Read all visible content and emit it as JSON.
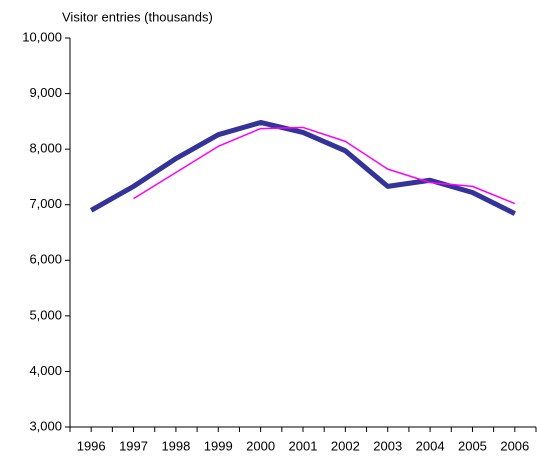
{
  "chart_data": {
    "type": "line",
    "y_axis_label": "Visitor entries (thousands)",
    "categories": [
      "1996",
      "1997",
      "1998",
      "1999",
      "2000",
      "2001",
      "2002",
      "2003",
      "2004",
      "2005",
      "2006"
    ],
    "series": [
      {
        "color": "#333399",
        "width": 5,
        "values": [
          6900,
          7330,
          7830,
          8260,
          8480,
          8300,
          7970,
          7330,
          7440,
          7220,
          6840
        ]
      },
      {
        "color": "#ff00ff",
        "width": 1.5,
        "values": [
          null,
          7110,
          7580,
          8050,
          8370,
          8390,
          8140,
          7640,
          7400,
          7330,
          7020
        ]
      }
    ],
    "ylim": [
      3000,
      10000
    ],
    "yticks": [
      {
        "value": 3000,
        "label": "3,000"
      },
      {
        "value": 4000,
        "label": "4,000"
      },
      {
        "value": 5000,
        "label": "5,000"
      },
      {
        "value": 6000,
        "label": "6,000"
      },
      {
        "value": 7000,
        "label": "7,000"
      },
      {
        "value": 8000,
        "label": "8,000"
      },
      {
        "value": 9000,
        "label": "9,000"
      },
      {
        "value": 10000,
        "label": "10,000"
      }
    ],
    "grid": false
  }
}
